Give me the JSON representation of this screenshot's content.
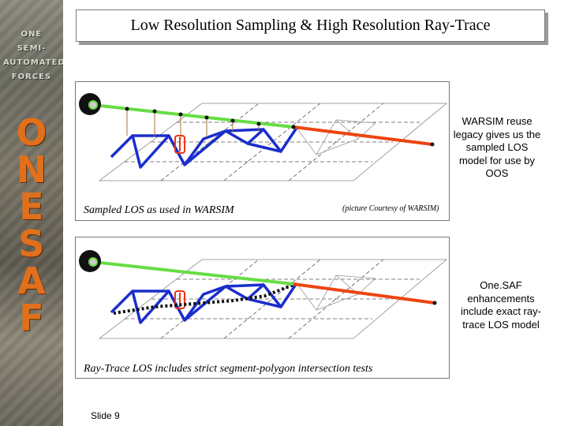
{
  "sidebar": {
    "top_words": [
      "ONE",
      "SEMI-",
      "AUTOMATED",
      "FORCES"
    ],
    "logo_letters": [
      "O",
      "N",
      "E",
      "S",
      "A",
      "F"
    ],
    "accent_color": "#e0701c"
  },
  "title": "Low Resolution Sampling & High Resolution Ray-Trace",
  "figure_top": {
    "caption": "Sampled LOS as used in WARSIM",
    "credit": "(picture Courtesy of WARSIM)"
  },
  "figure_bottom": {
    "caption": "Ray-Trace LOS includes strict segment-polygon intersection tests"
  },
  "notes": {
    "top": "WARSIM reuse legacy gives us the sampled LOS model for use by OOS",
    "bottom": "One.SAF enhancements include exact ray-trace LOS model"
  },
  "footer": {
    "slide_number": "Slide 9"
  },
  "colors": {
    "visible_segment": "#66dd44",
    "blocked_segment": "#ee4411",
    "terrain_visible": "#1a2ecc",
    "terrain_hidden": "#aaaaaa",
    "vehicle": "#ee3311",
    "observer": "#111111"
  }
}
